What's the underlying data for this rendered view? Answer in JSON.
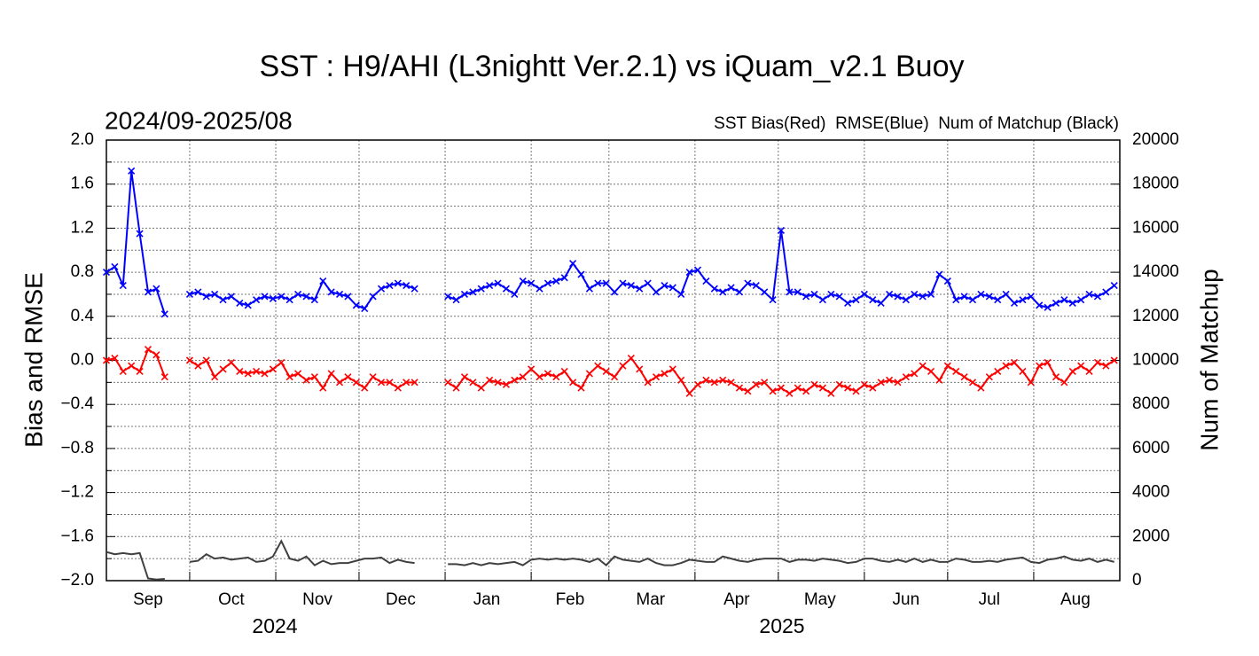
{
  "chart_data": {
    "type": "line",
    "title": "SST : H9/AHI (L3nightt Ver.2.1) vs iQuam_v2.1 Buoy",
    "subtitle": "2024/09-2025/08",
    "legend_text": "SST Bias(Red)  RMSE(Blue)  Num of Matchup (Black)",
    "y_label": "Bias and RMSE",
    "y2_label": "Num of Matchup",
    "year_labels": [
      "2024",
      "2025"
    ],
    "xlim": [
      0,
      365
    ],
    "xticks": [
      {
        "value": 15,
        "label": "Sep"
      },
      {
        "value": 45,
        "label": "Oct"
      },
      {
        "value": 76,
        "label": "Nov"
      },
      {
        "value": 106,
        "label": "Dec"
      },
      {
        "value": 137,
        "label": "Jan"
      },
      {
        "value": 167,
        "label": "Feb"
      },
      {
        "value": 196,
        "label": "Mar"
      },
      {
        "value": 227,
        "label": "Apr"
      },
      {
        "value": 257,
        "label": "May"
      },
      {
        "value": 288,
        "label": "Jun"
      },
      {
        "value": 318,
        "label": "Jul"
      },
      {
        "value": 349,
        "label": "Aug"
      }
    ],
    "xgrid": [
      30,
      61,
      91,
      122,
      153,
      181,
      212,
      242,
      273,
      303,
      334
    ],
    "ylim": [
      -2,
      2
    ],
    "yticks": [
      {
        "value": 2,
        "label": "2.0"
      },
      1.6,
      1.2,
      0.8,
      0.4,
      {
        "value": 0,
        "label": "0.0"
      },
      {
        "value": -0.4,
        "label": "−0.4"
      },
      {
        "value": -0.8,
        "label": "−0.8"
      },
      {
        "value": -1.2,
        "label": "−1.2"
      },
      {
        "value": -1.6,
        "label": "−1.6"
      },
      {
        "value": -2,
        "label": "−2.0"
      }
    ],
    "yminorticks": [
      1.8,
      1.4,
      1.0,
      0.6,
      0.2,
      -0.2,
      -0.6,
      -1.0,
      -1.4,
      -1.8
    ],
    "y2lim": [
      0,
      20000
    ],
    "y2ticks": [
      20000,
      18000,
      16000,
      14000,
      12000,
      10000,
      8000,
      6000,
      4000,
      2000,
      0
    ],
    "grid": true,
    "x": [
      0,
      3,
      6,
      9,
      12,
      15,
      18,
      21,
      24,
      27,
      30,
      33,
      36,
      39,
      42,
      45,
      48,
      51,
      54,
      57,
      60,
      63,
      66,
      69,
      72,
      75,
      78,
      81,
      84,
      87,
      90,
      93,
      96,
      99,
      102,
      105,
      108,
      111,
      114,
      117,
      120,
      123,
      126,
      129,
      132,
      135,
      138,
      141,
      144,
      147,
      150,
      153,
      156,
      159,
      162,
      165,
      168,
      171,
      174,
      177,
      180,
      183,
      186,
      189,
      192,
      195,
      198,
      201,
      204,
      207,
      210,
      213,
      216,
      219,
      222,
      225,
      228,
      231,
      234,
      237,
      240,
      243,
      246,
      249,
      252,
      255,
      258,
      261,
      264,
      267,
      270,
      273,
      276,
      279,
      282,
      285,
      288,
      291,
      294,
      297,
      300,
      303,
      306,
      309,
      312,
      315,
      318,
      321,
      324,
      327,
      330,
      333,
      336,
      339,
      342,
      345,
      348,
      351,
      354,
      357,
      360,
      363
    ],
    "series": [
      {
        "name": "RMSE",
        "color": "#0000ff",
        "marker": "x",
        "values": [
          0.8,
          0.85,
          0.68,
          1.72,
          1.15,
          0.62,
          0.65,
          0.42,
          null,
          null,
          0.6,
          0.62,
          0.58,
          0.6,
          0.55,
          0.58,
          0.52,
          0.5,
          0.55,
          0.58,
          0.56,
          0.58,
          0.55,
          0.6,
          0.58,
          0.55,
          0.72,
          0.62,
          0.6,
          0.58,
          0.5,
          0.47,
          0.58,
          0.65,
          0.68,
          0.7,
          0.68,
          0.65,
          null,
          null,
          null,
          0.58,
          0.55,
          0.6,
          0.62,
          0.65,
          0.68,
          0.7,
          0.65,
          0.6,
          0.72,
          0.7,
          0.65,
          0.7,
          0.72,
          0.75,
          0.88,
          0.78,
          0.65,
          0.7,
          0.7,
          0.62,
          0.7,
          0.68,
          0.65,
          0.7,
          0.62,
          0.68,
          0.66,
          0.6,
          0.8,
          0.82,
          0.72,
          0.65,
          0.62,
          0.66,
          0.62,
          0.7,
          0.68,
          0.62,
          0.55,
          1.18,
          0.62,
          0.62,
          0.58,
          0.6,
          0.55,
          0.6,
          0.58,
          0.52,
          0.55,
          0.6,
          0.55,
          0.52,
          0.6,
          0.58,
          0.55,
          0.6,
          0.58,
          0.6,
          0.78,
          0.72,
          0.55,
          0.58,
          0.55,
          0.6,
          0.58,
          0.55,
          0.6,
          0.52,
          0.55,
          0.58,
          0.5,
          0.48,
          0.52,
          0.55,
          0.52,
          0.55,
          0.6,
          0.58,
          0.62,
          0.68
        ]
      },
      {
        "name": "SST Bias",
        "color": "#ff0000",
        "marker": "x",
        "values": [
          0.0,
          0.02,
          -0.1,
          -0.05,
          -0.1,
          0.1,
          0.05,
          -0.15,
          null,
          null,
          0.0,
          -0.05,
          0.0,
          -0.15,
          -0.08,
          -0.02,
          -0.1,
          -0.12,
          -0.1,
          -0.12,
          -0.08,
          -0.02,
          -0.15,
          -0.12,
          -0.18,
          -0.15,
          -0.25,
          -0.12,
          -0.2,
          -0.15,
          -0.2,
          -0.25,
          -0.15,
          -0.2,
          -0.2,
          -0.25,
          -0.2,
          -0.2,
          null,
          null,
          null,
          -0.2,
          -0.25,
          -0.15,
          -0.2,
          -0.25,
          -0.18,
          -0.2,
          -0.22,
          -0.18,
          -0.15,
          -0.08,
          -0.15,
          -0.12,
          -0.15,
          -0.1,
          -0.2,
          -0.25,
          -0.12,
          -0.05,
          -0.1,
          -0.15,
          -0.05,
          0.02,
          -0.08,
          -0.2,
          -0.15,
          -0.12,
          -0.08,
          -0.18,
          -0.3,
          -0.22,
          -0.18,
          -0.2,
          -0.18,
          -0.2,
          -0.25,
          -0.28,
          -0.22,
          -0.2,
          -0.28,
          -0.25,
          -0.3,
          -0.25,
          -0.28,
          -0.22,
          -0.25,
          -0.3,
          -0.22,
          -0.25,
          -0.28,
          -0.22,
          -0.25,
          -0.2,
          -0.18,
          -0.2,
          -0.15,
          -0.12,
          -0.05,
          -0.1,
          -0.18,
          -0.05,
          -0.1,
          -0.15,
          -0.2,
          -0.25,
          -0.15,
          -0.1,
          -0.05,
          -0.02,
          -0.1,
          -0.2,
          -0.05,
          -0.02,
          -0.15,
          -0.2,
          -0.1,
          -0.05,
          -0.1,
          -0.02,
          -0.05,
          0.0
        ]
      },
      {
        "name": "Num of Matchup",
        "color": "#404040",
        "axis": "y2",
        "values": [
          1300,
          1200,
          1250,
          1200,
          1250,
          100,
          50,
          80,
          null,
          null,
          850,
          900,
          1200,
          1000,
          1050,
          950,
          1000,
          1050,
          850,
          900,
          1100,
          1800,
          1000,
          900,
          1100,
          700,
          900,
          750,
          800,
          800,
          900,
          1000,
          1000,
          1050,
          800,
          950,
          850,
          800,
          null,
          null,
          null,
          750,
          750,
          700,
          800,
          700,
          800,
          750,
          800,
          850,
          700,
          950,
          1000,
          950,
          1000,
          950,
          1000,
          950,
          850,
          1000,
          700,
          1100,
          950,
          900,
          850,
          1000,
          800,
          700,
          700,
          800,
          950,
          900,
          850,
          850,
          1100,
          1000,
          900,
          850,
          950,
          1000,
          1000,
          1000,
          850,
          950,
          950,
          900,
          1000,
          950,
          900,
          800,
          850,
          1000,
          1000,
          900,
          850,
          950,
          850,
          1000,
          850,
          950,
          850,
          850,
          1000,
          950,
          850,
          850,
          900,
          850,
          950,
          1000,
          1050,
          850,
          800,
          950,
          1000,
          1100,
          950,
          900,
          1000,
          850,
          950,
          850
        ]
      }
    ]
  }
}
